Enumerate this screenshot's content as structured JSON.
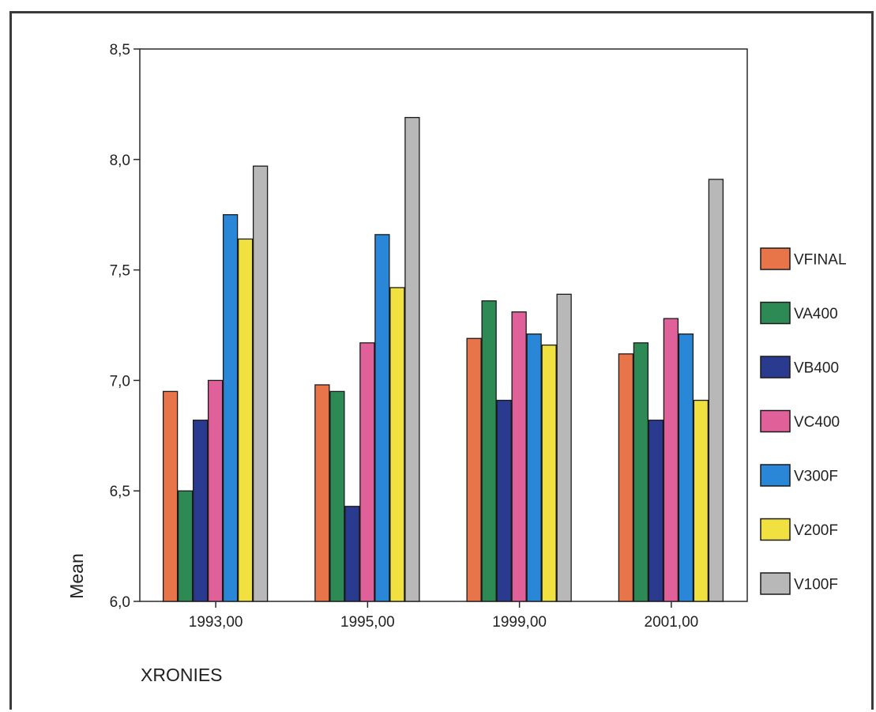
{
  "chart_data": {
    "type": "bar",
    "xlabel": "XRONIES",
    "ylabel": "Mean",
    "ylim": [
      6.0,
      8.5
    ],
    "yticks": [
      "6,0",
      "6,5",
      "7,0",
      "7,5",
      "8,0",
      "8,5"
    ],
    "ytick_values": [
      6.0,
      6.5,
      7.0,
      7.5,
      8.0,
      8.5
    ],
    "categories": [
      "1993,00",
      "1995,00",
      "1999,00",
      "2001,00"
    ],
    "grid": false,
    "legend_position": "right",
    "series": [
      {
        "name": "VFINAL",
        "color": "#e8744a",
        "values": [
          6.95,
          6.98,
          7.19,
          7.12
        ]
      },
      {
        "name": "VA400",
        "color": "#2e8a55",
        "values": [
          6.5,
          6.95,
          7.36,
          7.17
        ]
      },
      {
        "name": "VB400",
        "color": "#2a3a8f",
        "values": [
          6.82,
          6.43,
          6.91,
          6.82
        ]
      },
      {
        "name": "VC400",
        "color": "#e0609a",
        "values": [
          7.0,
          7.17,
          7.31,
          7.28
        ]
      },
      {
        "name": "V300F",
        "color": "#2a86d6",
        "values": [
          7.75,
          7.66,
          7.21,
          7.21
        ]
      },
      {
        "name": "V200F",
        "color": "#f0e040",
        "values": [
          7.64,
          7.42,
          7.16,
          6.91
        ]
      },
      {
        "name": "V100F",
        "color": "#b8b8b8",
        "values": [
          7.97,
          8.19,
          7.39,
          7.91
        ]
      }
    ]
  }
}
